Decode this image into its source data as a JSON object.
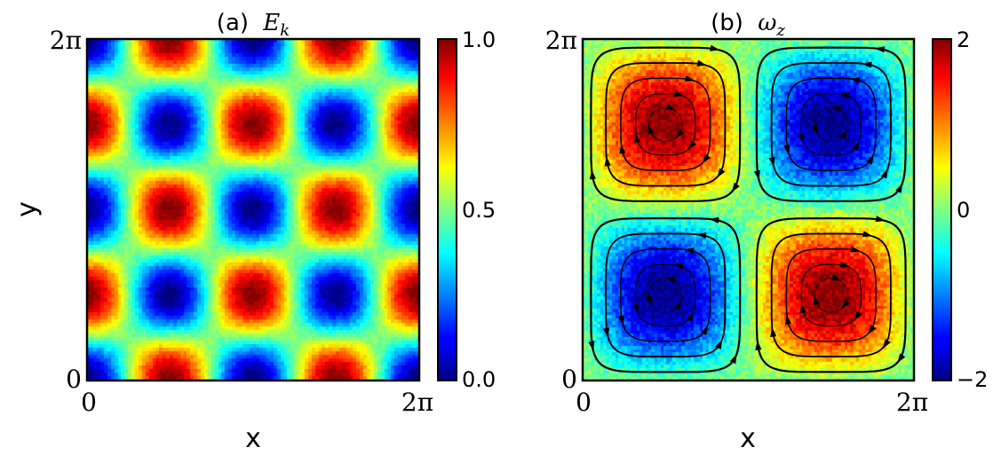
{
  "chart_data": [
    {
      "type": "heatmap",
      "panel_label": "(a)",
      "title_symbol": "E",
      "title_subscript": "k",
      "xlabel": "x",
      "ylabel": "y",
      "x_ticks": [
        "0",
        "2π"
      ],
      "y_ticks": [
        "0",
        "2π"
      ],
      "xlim": [
        0,
        6.2832
      ],
      "ylim": [
        0,
        6.2832
      ],
      "field": "E_k = 0.5*(sin²(x)cos²(y) + cos²(x)sin²(y)) normalized",
      "colormap": "jet",
      "colorbar": {
        "min": 0.0,
        "max": 1.0,
        "ticks": [
          "0.0",
          "0.5",
          "1.0"
        ],
        "tick_values": [
          0.0,
          0.5,
          1.0
        ]
      },
      "maxima_centers_fraction": "periodic, period π in x and y"
    },
    {
      "type": "heatmap",
      "panel_label": "(b)",
      "title_symbol": "ω",
      "title_subscript": "z",
      "xlabel": "x",
      "x_ticks": [
        "0",
        "2π"
      ],
      "y_ticks": [
        "0",
        "2π"
      ],
      "xlim": [
        0,
        6.2832
      ],
      "ylim": [
        0,
        6.2832
      ],
      "field": "omega_z = -2 sin(x) sin(y)",
      "colormap": "jet",
      "streamlines": true,
      "colorbar": {
        "min": -2,
        "max": 2,
        "ticks": [
          "2",
          "0",
          "−2"
        ],
        "tick_values": [
          2,
          0,
          -2
        ]
      }
    }
  ]
}
